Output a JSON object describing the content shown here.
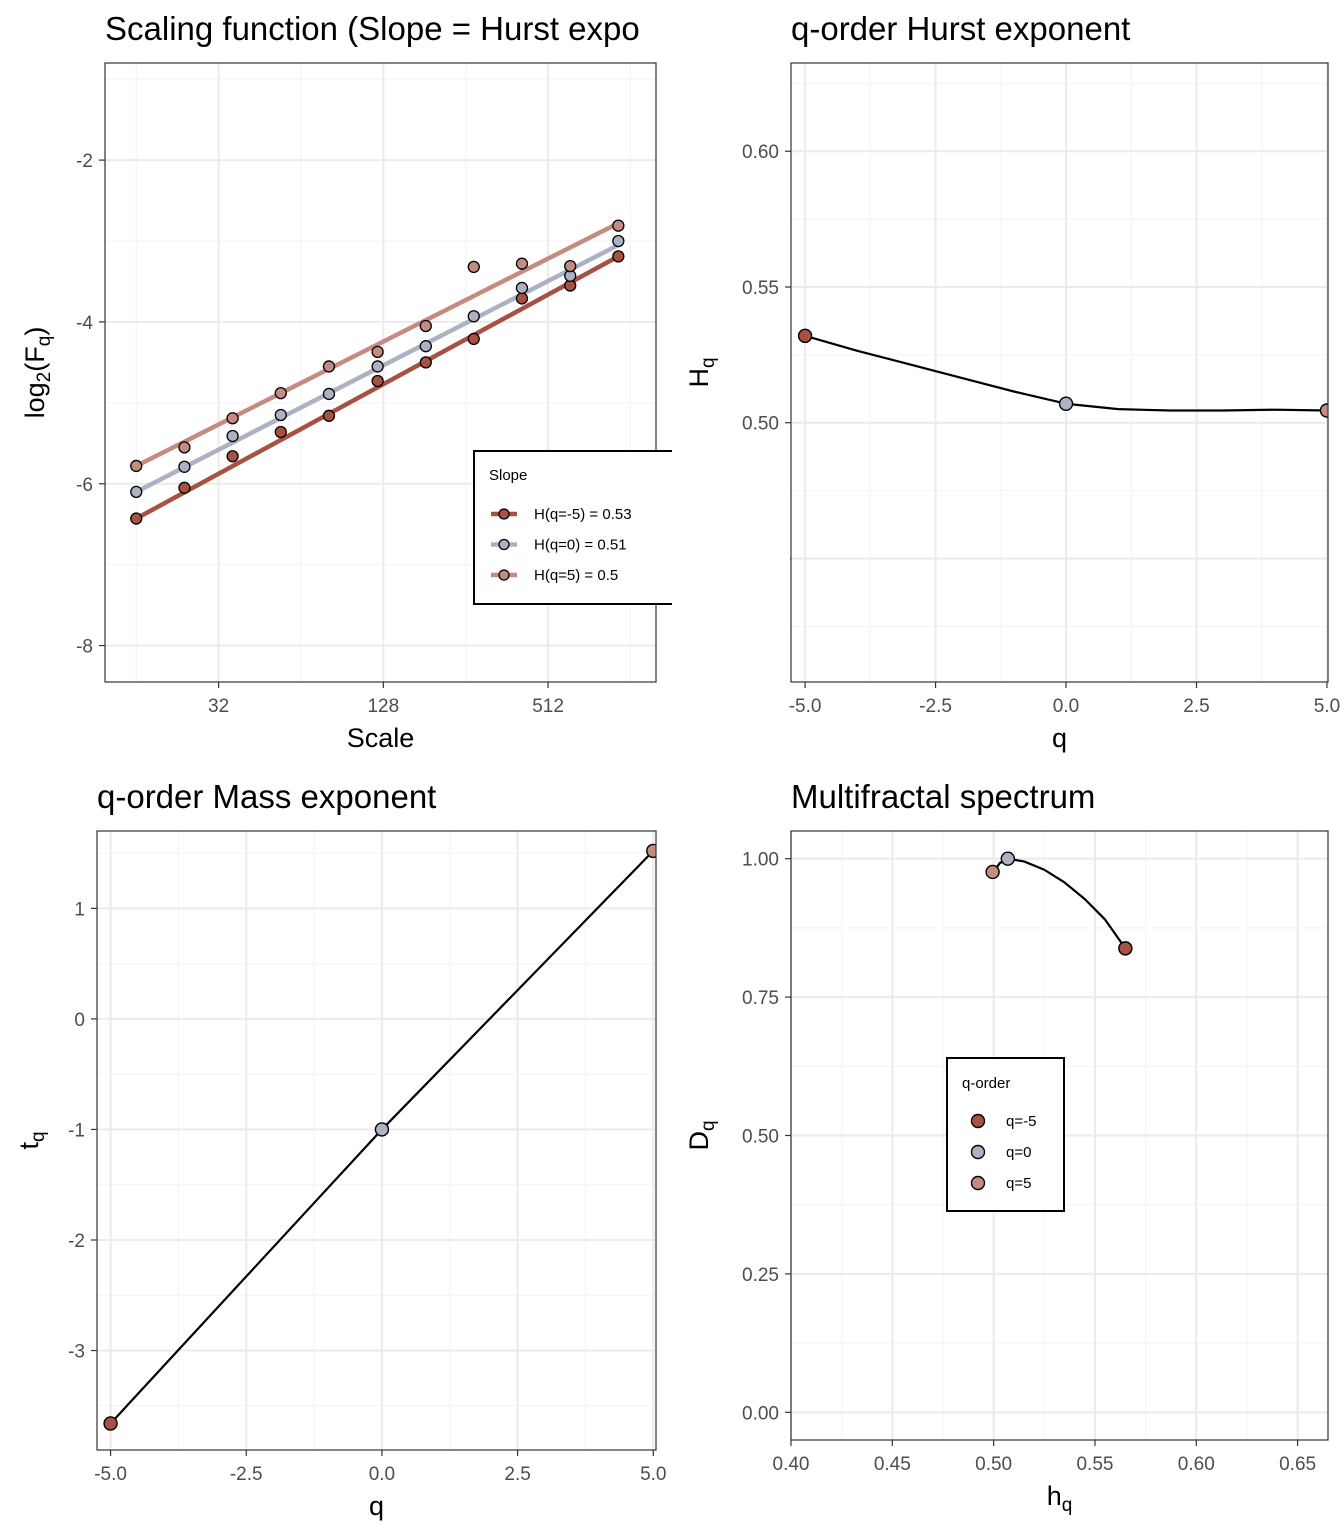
{
  "colors": {
    "q_neg5": "#A65141",
    "q_0": "#ABB2C4",
    "q_5": "#C48C80",
    "point_stroke": "#000000",
    "curve": "#000000"
  },
  "chart_data": [
    {
      "id": "scaling",
      "type": "scatter",
      "title": "Scaling function (Slope = Hurst expo",
      "xlabel": "Scale",
      "ylabel": {
        "base": "log",
        "sub": "2",
        "mid": "(F",
        "sub2": "q",
        "end": ")"
      },
      "x_scale": "log2",
      "xlim": [
        12.3,
        1270
      ],
      "ylim": [
        -8.45,
        -0.8
      ],
      "x_ticks": [
        {
          "value": 32,
          "label": "32"
        },
        {
          "value": 128,
          "label": "128"
        },
        {
          "value": 512,
          "label": "512"
        }
      ],
      "y_ticks": [
        {
          "value": -2,
          "label": "-2"
        },
        {
          "value": -4,
          "label": "-4"
        },
        {
          "value": -6,
          "label": "-6"
        },
        {
          "value": -8,
          "label": "-8"
        }
      ],
      "x": [
        16,
        24,
        36,
        54,
        81,
        122,
        183,
        274,
        411,
        617,
        925
      ],
      "series": [
        {
          "name": "H(q=-5) = 0.53",
          "color_key": "q_neg5",
          "values": [
            -6.43,
            -6.05,
            -5.66,
            -5.36,
            -5.16,
            -4.73,
            -4.5,
            -4.21,
            -3.71,
            -3.55,
            -3.19
          ],
          "fit": [
            -6.43,
            -3.19
          ]
        },
        {
          "name": "H(q=0) = 0.51",
          "color_key": "q_0",
          "values": [
            -6.1,
            -5.79,
            -5.41,
            -5.15,
            -4.89,
            -4.55,
            -4.3,
            -3.93,
            -3.58,
            -3.43,
            -3.0
          ],
          "fit": [
            -6.1,
            -3.05
          ]
        },
        {
          "name": "H(q=5) = 0.5",
          "color_key": "q_5",
          "values": [
            -5.78,
            -5.55,
            -5.19,
            -4.88,
            -4.55,
            -4.37,
            -4.05,
            -3.32,
            -3.28,
            -3.31,
            -2.81
          ],
          "fit": [
            -5.78,
            -2.78
          ]
        }
      ],
      "legend": {
        "title": "Slope",
        "position": "right"
      }
    },
    {
      "id": "hurst",
      "type": "line",
      "title": "q-order Hurst exponent",
      "xlabel": "q",
      "ylabel": {
        "base": "H",
        "sub": "q"
      },
      "xlim": [
        -5.27,
        5.02
      ],
      "ylim": [
        0.4045,
        0.6325
      ],
      "x_ticks": [
        {
          "value": -5,
          "label": "-5.0"
        },
        {
          "value": -2.5,
          "label": "-2.5"
        },
        {
          "value": 0,
          "label": "0.0"
        },
        {
          "value": 2.5,
          "label": "2.5"
        },
        {
          "value": 5,
          "label": "5.0"
        }
      ],
      "y_ticks": [
        {
          "value": 0.45,
          "label": "0.45"
        },
        {
          "value": 0.5,
          "label": "0.50"
        },
        {
          "value": 0.55,
          "label": "0.55"
        },
        {
          "value": 0.6,
          "label": "0.60"
        }
      ],
      "curve": {
        "x": [
          -5,
          -4,
          -3,
          -2,
          -1,
          0,
          1,
          2,
          3,
          4,
          5
        ],
        "y": [
          0.532,
          0.5265,
          0.5215,
          0.5165,
          0.5115,
          0.507,
          0.505,
          0.5045,
          0.5045,
          0.5048,
          0.5045
        ]
      },
      "points": [
        {
          "x": -5,
          "y": 0.532,
          "color_key": "q_neg5"
        },
        {
          "x": 0,
          "y": 0.507,
          "color_key": "q_0"
        },
        {
          "x": 5,
          "y": 0.5045,
          "color_key": "q_5"
        }
      ]
    },
    {
      "id": "mass",
      "type": "line",
      "title": "q-order Mass exponent",
      "xlabel": "q",
      "ylabel": {
        "base": "t",
        "sub": "q"
      },
      "xlim": [
        -5.25,
        5.05
      ],
      "ylim": [
        -3.9,
        1.7
      ],
      "x_ticks": [
        {
          "value": -5,
          "label": "-5.0"
        },
        {
          "value": -2.5,
          "label": "-2.5"
        },
        {
          "value": 0,
          "label": "0.0"
        },
        {
          "value": 2.5,
          "label": "2.5"
        },
        {
          "value": 5,
          "label": "5.0"
        }
      ],
      "y_ticks": [
        {
          "value": -3,
          "label": "-3"
        },
        {
          "value": -2,
          "label": "-2"
        },
        {
          "value": -1,
          "label": "-1"
        },
        {
          "value": 0,
          "label": "0"
        },
        {
          "value": 1,
          "label": "1"
        }
      ],
      "curve": {
        "x": [
          -5,
          0,
          5
        ],
        "y": [
          -3.66,
          -1.0,
          1.52
        ]
      },
      "points": [
        {
          "x": -5,
          "y": -3.66,
          "color_key": "q_neg5"
        },
        {
          "x": 0,
          "y": -1.0,
          "color_key": "q_0"
        },
        {
          "x": 5,
          "y": 1.52,
          "color_key": "q_5"
        }
      ]
    },
    {
      "id": "spectrum",
      "type": "line",
      "title": "Multifractal spectrum",
      "xlabel": {
        "base": "h",
        "sub": "q"
      },
      "ylabel": {
        "base": "D",
        "sub": "q"
      },
      "xlim": [
        0.4,
        0.665
      ],
      "ylim": [
        -0.05,
        1.05
      ],
      "x_ticks": [
        {
          "value": 0.4,
          "label": "0.40"
        },
        {
          "value": 0.45,
          "label": "0.45"
        },
        {
          "value": 0.5,
          "label": "0.50"
        },
        {
          "value": 0.55,
          "label": "0.55"
        },
        {
          "value": 0.6,
          "label": "0.60"
        },
        {
          "value": 0.65,
          "label": "0.65"
        }
      ],
      "y_ticks": [
        {
          "value": 0,
          "label": "0.00"
        },
        {
          "value": 0.25,
          "label": "0.25"
        },
        {
          "value": 0.5,
          "label": "0.50"
        },
        {
          "value": 0.75,
          "label": "0.75"
        },
        {
          "value": 1,
          "label": "1.00"
        }
      ],
      "curve": {
        "x": [
          0.5,
          0.503,
          0.507,
          0.515,
          0.525,
          0.535,
          0.545,
          0.555,
          0.565
        ],
        "y": [
          0.976,
          0.992,
          1.0,
          0.995,
          0.98,
          0.957,
          0.927,
          0.89,
          0.838
        ]
      },
      "points": [
        {
          "x": 0.565,
          "y": 0.838,
          "color_key": "q_neg5"
        },
        {
          "x": 0.507,
          "y": 1.0,
          "color_key": "q_0"
        },
        {
          "x": 0.4995,
          "y": 0.976,
          "color_key": "q_5"
        }
      ],
      "legend": {
        "title": "q-order",
        "labels": [
          "q=-5",
          "q=0",
          "q=5"
        ],
        "position": "inside-left"
      }
    }
  ]
}
